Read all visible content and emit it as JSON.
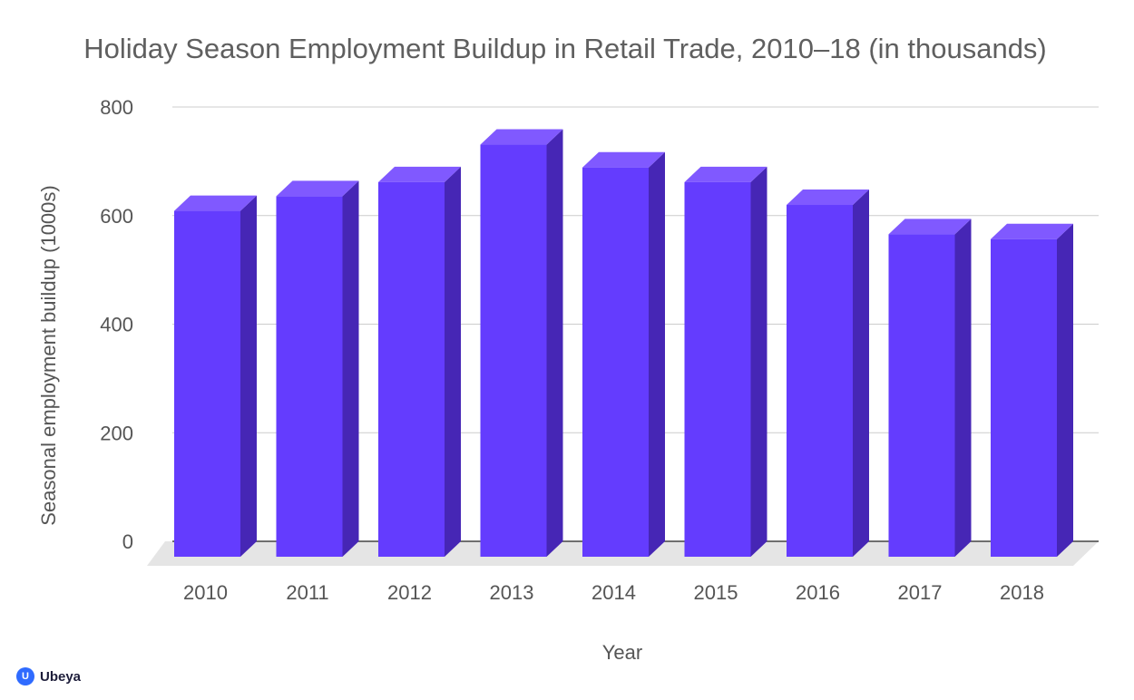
{
  "chart_data": {
    "type": "bar",
    "title": "Holiday Season Employment Buildup in Retail Trade, 2010–18 (in thousands)",
    "xlabel": "Year",
    "ylabel": "Seasonal employment buildup (1000s)",
    "categories": [
      "2010",
      "2011",
      "2012",
      "2013",
      "2014",
      "2015",
      "2016",
      "2017",
      "2018"
    ],
    "values": [
      637,
      664,
      690,
      759,
      717,
      690,
      648,
      594,
      585
    ],
    "ylim": [
      0,
      800
    ],
    "yticks": [
      0,
      200,
      400,
      600,
      800
    ],
    "grid": true,
    "legend": "none",
    "style": "3d-bar",
    "colors": {
      "bar_front": "#643cfe",
      "bar_side": "#4626b5",
      "bar_top": "#8059ff",
      "gridline": "#cccccc",
      "floor": "#e5e5e5"
    }
  },
  "brand": {
    "name": "Ubeya",
    "mark": "U"
  }
}
